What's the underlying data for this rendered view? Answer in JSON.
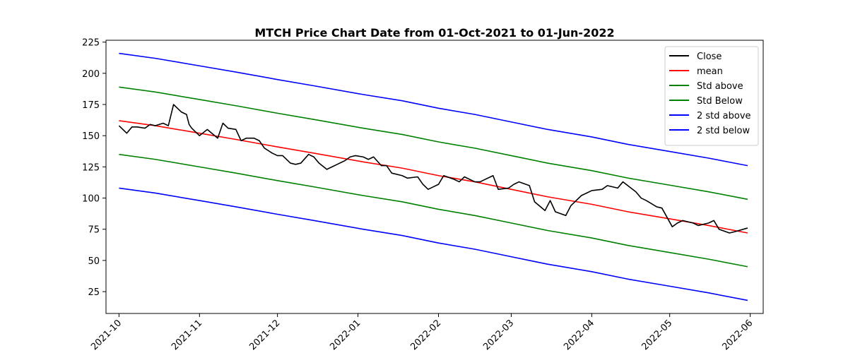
{
  "chart_data": {
    "type": "line",
    "title": "MTCH Price Chart Date from 01-Oct-2021 to 01-Jun-2022",
    "xlabel": "",
    "ylabel": "",
    "x_range": [
      "2021-09-26",
      "2022-06-06"
    ],
    "ylim": [
      7.5,
      226.5
    ],
    "x_ticks": [
      "2021-10",
      "2021-11",
      "2021-12",
      "2022-01",
      "2022-02",
      "2022-03",
      "2022-04",
      "2022-05",
      "2022-06"
    ],
    "y_ticks": [
      25,
      50,
      75,
      100,
      125,
      150,
      175,
      200,
      225
    ],
    "grid": false,
    "legend": "top-right",
    "series": [
      {
        "name": "Close",
        "color": "#000000",
        "x": [
          "2021-10-01",
          "2021-10-04",
          "2021-10-06",
          "2021-10-08",
          "2021-10-11",
          "2021-10-13",
          "2021-10-15",
          "2021-10-18",
          "2021-10-20",
          "2021-10-22",
          "2021-10-25",
          "2021-10-27",
          "2021-10-28",
          "2021-10-29",
          "2021-11-01",
          "2021-11-04",
          "2021-11-08",
          "2021-11-10",
          "2021-11-12",
          "2021-11-15",
          "2021-11-17",
          "2021-11-19",
          "2021-11-22",
          "2021-11-24",
          "2021-11-26",
          "2021-11-29",
          "2021-12-01",
          "2021-12-03",
          "2021-12-06",
          "2021-12-08",
          "2021-12-10",
          "2021-12-13",
          "2021-12-15",
          "2021-12-17",
          "2021-12-20",
          "2021-12-22",
          "2021-12-24",
          "2021-12-27",
          "2021-12-29",
          "2021-12-31",
          "2022-01-03",
          "2022-01-05",
          "2022-01-07",
          "2022-01-10",
          "2022-01-12",
          "2022-01-14",
          "2022-01-18",
          "2022-01-20",
          "2022-01-24",
          "2022-01-26",
          "2022-01-28",
          "2022-02-01",
          "2022-02-03",
          "2022-02-07",
          "2022-02-09",
          "2022-02-11",
          "2022-02-15",
          "2022-02-17",
          "2022-02-22",
          "2022-02-24",
          "2022-02-28",
          "2022-03-02",
          "2022-03-04",
          "2022-03-08",
          "2022-03-10",
          "2022-03-14",
          "2022-03-16",
          "2022-03-18",
          "2022-03-22",
          "2022-03-24",
          "2022-03-28",
          "2022-03-30",
          "2022-04-01",
          "2022-04-05",
          "2022-04-07",
          "2022-04-11",
          "2022-04-13",
          "2022-04-18",
          "2022-04-20",
          "2022-04-22",
          "2022-04-26",
          "2022-04-28",
          "2022-05-02",
          "2022-05-04",
          "2022-05-06",
          "2022-05-10",
          "2022-05-12",
          "2022-05-16",
          "2022-05-18",
          "2022-05-20",
          "2022-05-24",
          "2022-05-26",
          "2022-05-31"
        ],
        "values": [
          158,
          152,
          157,
          157,
          156,
          159,
          158,
          160,
          158,
          175,
          169,
          167,
          159,
          156,
          150,
          155,
          148,
          160,
          156,
          155,
          146,
          148,
          148,
          146,
          140,
          136,
          134,
          134,
          128,
          127,
          128,
          135,
          133,
          128,
          123,
          125,
          127,
          130,
          133,
          134,
          133,
          131,
          133,
          126,
          126,
          120,
          118,
          116,
          117,
          111,
          107,
          111,
          118,
          115,
          113,
          117,
          113,
          113,
          118,
          107,
          108,
          111,
          113,
          110,
          97,
          90,
          98,
          89,
          86,
          94,
          102,
          104,
          106,
          107,
          110,
          108,
          113,
          105,
          100,
          98,
          93,
          92,
          77,
          80,
          82,
          80,
          78,
          80,
          82,
          75,
          72,
          73,
          76
        ]
      },
      {
        "name": "mean",
        "color": "#ff0000",
        "x": [
          "2021-10-01",
          "2021-10-15",
          "2021-11-01",
          "2021-11-15",
          "2021-12-01",
          "2021-12-15",
          "2022-01-03",
          "2022-01-18",
          "2022-02-01",
          "2022-02-15",
          "2022-03-01",
          "2022-03-15",
          "2022-04-01",
          "2022-04-15",
          "2022-05-02",
          "2022-05-16",
          "2022-05-31"
        ],
        "values": [
          162,
          158,
          152,
          147,
          141,
          136,
          129,
          124,
          118,
          113,
          107,
          101,
          95,
          89,
          83,
          78,
          72
        ]
      },
      {
        "name": "Std above",
        "color": "#008000",
        "x": [
          "2021-10-01",
          "2021-10-15",
          "2021-11-01",
          "2021-11-15",
          "2021-12-01",
          "2021-12-15",
          "2022-01-03",
          "2022-01-18",
          "2022-02-01",
          "2022-02-15",
          "2022-03-01",
          "2022-03-15",
          "2022-04-01",
          "2022-04-15",
          "2022-05-02",
          "2022-05-16",
          "2022-05-31"
        ],
        "values": [
          189,
          185,
          179,
          174,
          168,
          163,
          156,
          151,
          145,
          140,
          134,
          128,
          122,
          116,
          110,
          105,
          99
        ]
      },
      {
        "name": "Std Below",
        "color": "#008000",
        "x": [
          "2021-10-01",
          "2021-10-15",
          "2021-11-01",
          "2021-11-15",
          "2021-12-01",
          "2021-12-15",
          "2022-01-03",
          "2022-01-18",
          "2022-02-01",
          "2022-02-15",
          "2022-03-01",
          "2022-03-15",
          "2022-04-01",
          "2022-04-15",
          "2022-05-02",
          "2022-05-16",
          "2022-05-31"
        ],
        "values": [
          135,
          131,
          125,
          120,
          114,
          109,
          102,
          97,
          91,
          86,
          80,
          74,
          68,
          62,
          56,
          51,
          45
        ]
      },
      {
        "name": "2 std above",
        "color": "#0000ff",
        "x": [
          "2021-10-01",
          "2021-10-15",
          "2021-11-01",
          "2021-11-15",
          "2021-12-01",
          "2021-12-15",
          "2022-01-03",
          "2022-01-18",
          "2022-02-01",
          "2022-02-15",
          "2022-03-01",
          "2022-03-15",
          "2022-04-01",
          "2022-04-15",
          "2022-05-02",
          "2022-05-16",
          "2022-05-31"
        ],
        "values": [
          216,
          212,
          206,
          201,
          195,
          190,
          183,
          178,
          172,
          167,
          161,
          155,
          149,
          143,
          137,
          132,
          126
        ]
      },
      {
        "name": "2 std below",
        "color": "#0000ff",
        "x": [
          "2021-10-01",
          "2021-10-15",
          "2021-11-01",
          "2021-11-15",
          "2021-12-01",
          "2021-12-15",
          "2022-01-03",
          "2022-01-18",
          "2022-02-01",
          "2022-02-15",
          "2022-03-01",
          "2022-03-15",
          "2022-04-01",
          "2022-04-15",
          "2022-05-02",
          "2022-05-16",
          "2022-05-31"
        ],
        "values": [
          108,
          104,
          98,
          93,
          87,
          82,
          75,
          70,
          64,
          59,
          53,
          47,
          41,
          35,
          29,
          24,
          18
        ]
      }
    ]
  }
}
